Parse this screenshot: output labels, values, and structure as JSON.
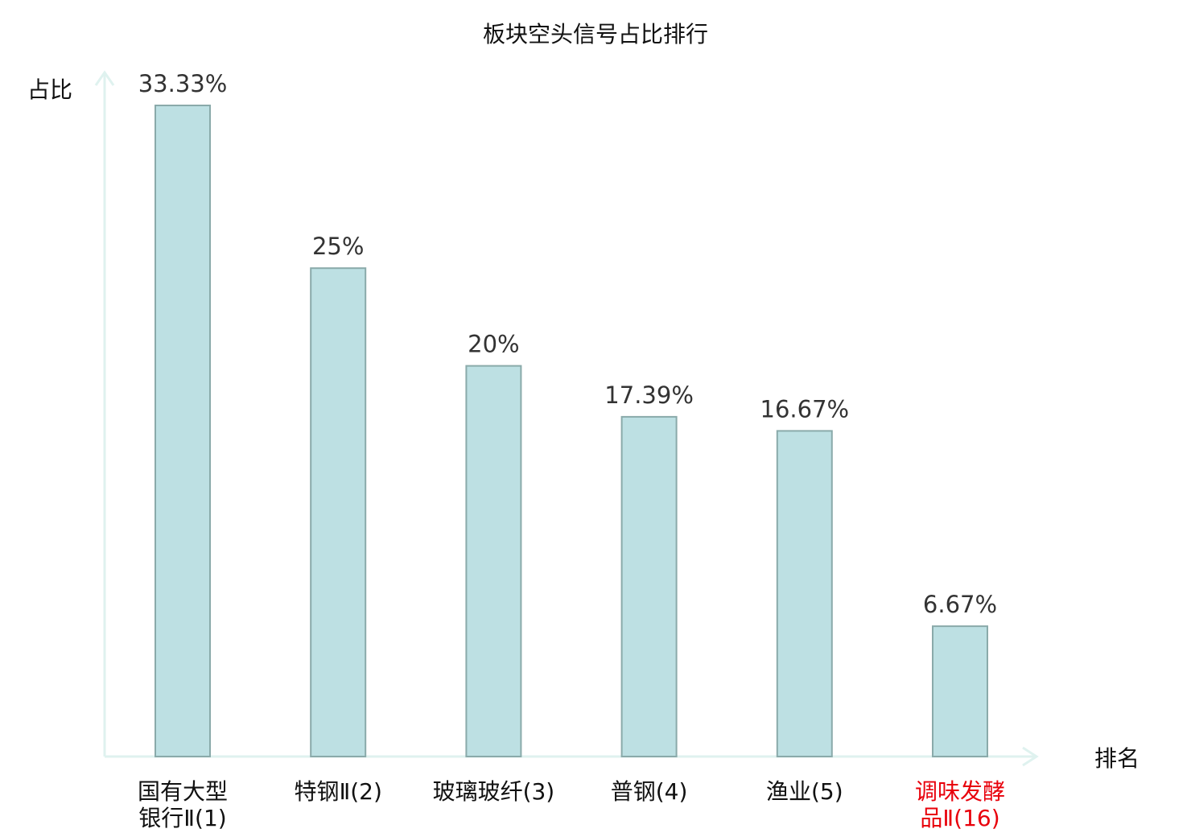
{
  "chart_data": {
    "type": "bar",
    "title": "板块空头信号占比排行",
    "ylabel": "占比",
    "xlabel": "排名",
    "categories": [
      [
        "国有大型",
        "银行Ⅱ(1)"
      ],
      [
        "特钢Ⅱ(2)"
      ],
      [
        "玻璃玻纤(3)"
      ],
      [
        "普钢(4)"
      ],
      [
        "渔业(5)"
      ],
      [
        "调味发酵",
        "品Ⅱ(16)"
      ]
    ],
    "values": [
      33.33,
      25,
      20,
      17.39,
      16.67,
      6.67
    ],
    "value_labels": [
      "33.33%",
      "25%",
      "20%",
      "17.39%",
      "16.67%",
      "6.67%"
    ],
    "highlighted_category_index": 5,
    "ylim": [
      0,
      34.5
    ],
    "grid": false,
    "legend": "none",
    "colors": {
      "bar_fill": "#bde0e3",
      "bar_stroke": "#8aaaaa",
      "axis": "#dff2ef",
      "highlight_text": "#e8000b",
      "category_text": "#111111"
    }
  }
}
